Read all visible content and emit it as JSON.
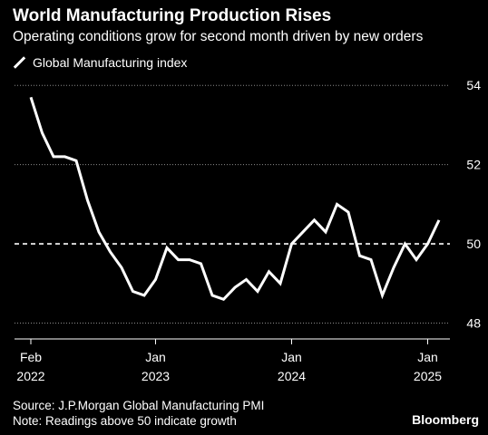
{
  "chart_data": {
    "type": "line",
    "title": "World Manufacturing Production Rises",
    "subtitle": "Operating conditions grow for second month driven by new orders",
    "xlabel": "",
    "ylabel": "",
    "ylim": [
      47.6,
      54.6
    ],
    "y_ticks": [
      "48",
      "50",
      "52",
      "54"
    ],
    "y_tick_values": [
      48,
      50,
      52,
      54
    ],
    "reference_line": 50,
    "x_ticks": [
      {
        "month": "Feb",
        "year": "2022",
        "date": "2022-02"
      },
      {
        "month": "Jan",
        "year": "2023",
        "date": "2023-01"
      },
      {
        "month": "Jan",
        "year": "2024",
        "date": "2024-01"
      },
      {
        "month": "Jan",
        "year": "2025",
        "date": "2025-01"
      }
    ],
    "grid": "horizontal dotted",
    "legend_position": "top-left",
    "series": [
      {
        "name": "Global Manufacturing index",
        "color": "#ffffff",
        "x": [
          "2022-02",
          "2022-03",
          "2022-04",
          "2022-05",
          "2022-06",
          "2022-07",
          "2022-08",
          "2022-09",
          "2022-10",
          "2022-11",
          "2022-12",
          "2023-01",
          "2023-02",
          "2023-03",
          "2023-04",
          "2023-05",
          "2023-06",
          "2023-07",
          "2023-08",
          "2023-09",
          "2023-10",
          "2023-11",
          "2023-12",
          "2024-01",
          "2024-02",
          "2024-03",
          "2024-04",
          "2024-05",
          "2024-06",
          "2024-07",
          "2024-08",
          "2024-09",
          "2024-10",
          "2024-11",
          "2024-12",
          "2025-01",
          "2025-02"
        ],
        "values": [
          53.7,
          52.8,
          52.2,
          52.2,
          52.1,
          51.1,
          50.3,
          49.8,
          49.4,
          48.8,
          48.7,
          49.1,
          49.9,
          49.6,
          49.6,
          49.5,
          48.7,
          48.6,
          48.9,
          49.1,
          48.8,
          49.3,
          49.0,
          50.0,
          50.3,
          50.6,
          50.3,
          51.0,
          50.8,
          49.7,
          49.6,
          48.7,
          49.4,
          50.0,
          49.6,
          50.0,
          50.6
        ]
      }
    ]
  },
  "legend": {
    "label": "Global Manufacturing index"
  },
  "footer": {
    "source": "Source: J.P.Morgan Global Manufacturing PMI",
    "note": "Note: Readings above 50 indicate growth",
    "brand": "Bloomberg"
  },
  "colors": {
    "background": "#000000",
    "line": "#ffffff",
    "grid": "#8c8c8c",
    "reference": "#ffffff"
  }
}
